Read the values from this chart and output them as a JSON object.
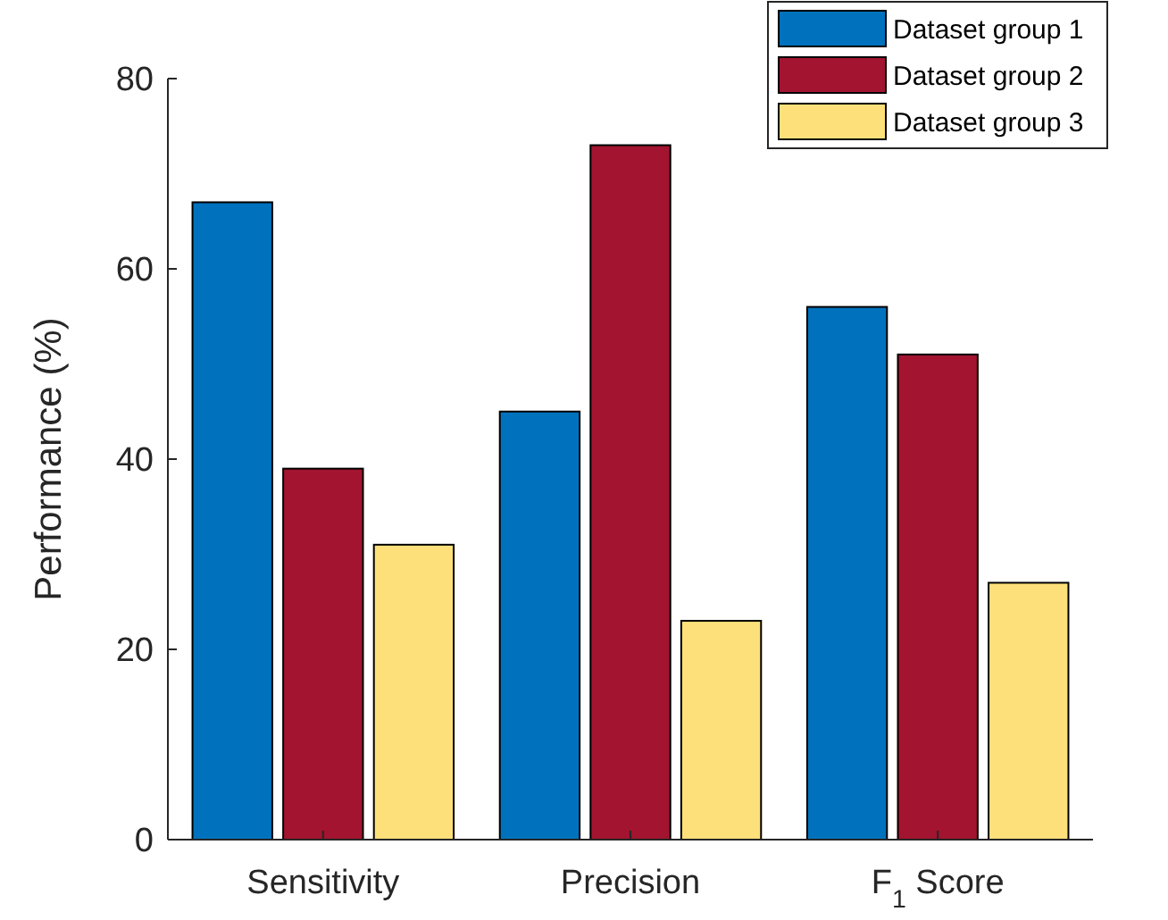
{
  "chart_data": {
    "type": "bar",
    "ylabel": "Performance (%)",
    "categories": [
      "Sensitivity",
      "Precision",
      "F$_{1}$ Score"
    ],
    "series": [
      {
        "name": "Dataset group 1",
        "color": "#0072bd",
        "values": [
          67,
          45,
          56
        ]
      },
      {
        "name": "Dataset group 2",
        "color": "#a2142f",
        "values": [
          39,
          73,
          51
        ]
      },
      {
        "name": "Dataset group 3",
        "color": "#fde07a",
        "values": [
          31,
          23,
          27
        ]
      }
    ],
    "ylim": [
      0,
      80
    ],
    "yticks": [
      0,
      20,
      40,
      60,
      80
    ],
    "grid": false,
    "legend": "top right"
  }
}
